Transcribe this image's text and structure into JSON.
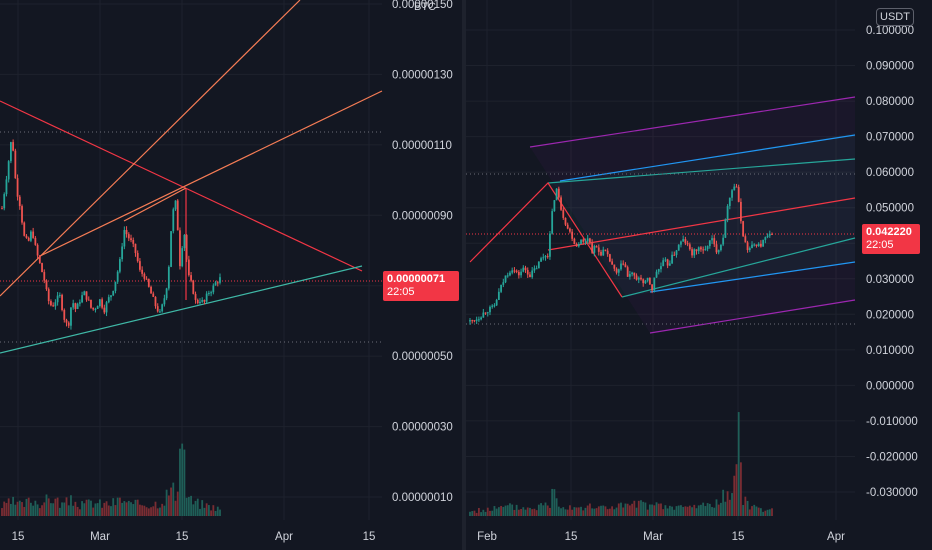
{
  "chart_data": [
    {
      "type": "candlestick",
      "pair_quote": "BTC",
      "y_ticks": [
        "0.00000150",
        "0.00000130",
        "0.00000110",
        "0.00000090",
        "0.00000070",
        "0.00000050",
        "0.00000030",
        "0.00000010"
      ],
      "y_tick_values": [
        1.5e-06,
        1.3e-06,
        1.1e-06,
        9e-07,
        7e-07,
        5e-07,
        3e-07,
        1e-07
      ],
      "x_ticks": [
        "15",
        "Mar",
        "15",
        "Apr",
        "15"
      ],
      "ylim": [
        7e-08,
        1.5e-06
      ],
      "last_price": "0.00000071",
      "countdown": "22:05",
      "price_path": [
        [
          0,
          9.2e-07
        ],
        [
          6,
          1.04e-06
        ],
        [
          10,
          1.13e-06
        ],
        [
          14,
          9.8e-07
        ],
        [
          18,
          9.3e-07
        ],
        [
          22,
          8.4e-07
        ],
        [
          26,
          8.2e-07
        ],
        [
          30,
          8.6e-07
        ],
        [
          34,
          8e-07
        ],
        [
          38,
          7.6e-07
        ],
        [
          42,
          7.2e-07
        ],
        [
          46,
          6.6e-07
        ],
        [
          50,
          6.4e-07
        ],
        [
          54,
          6.6e-07
        ],
        [
          58,
          6.7e-07
        ],
        [
          62,
          6.1e-07
        ],
        [
          66,
          5.8e-07
        ],
        [
          70,
          6.6e-07
        ],
        [
          74,
          6.3e-07
        ],
        [
          78,
          6.6e-07
        ],
        [
          82,
          6.8e-07
        ],
        [
          86,
          6.6e-07
        ],
        [
          90,
          6.3e-07
        ],
        [
          94,
          6.4e-07
        ],
        [
          98,
          6.6e-07
        ],
        [
          102,
          6.3e-07
        ],
        [
          106,
          6.6e-07
        ],
        [
          110,
          6.8e-07
        ],
        [
          114,
          7.2e-07
        ],
        [
          118,
          7.7e-07
        ],
        [
          122,
          8.6e-07
        ],
        [
          126,
          8.4e-07
        ],
        [
          130,
          8.2e-07
        ],
        [
          134,
          7.9e-07
        ],
        [
          138,
          7.4e-07
        ],
        [
          142,
          7.3e-07
        ],
        [
          146,
          7e-07
        ],
        [
          150,
          6.7e-07
        ],
        [
          154,
          6.4e-07
        ],
        [
          158,
          6.2e-07
        ],
        [
          162,
          6.6e-07
        ],
        [
          166,
          7.2e-07
        ],
        [
          170,
          9e-07
        ],
        [
          174,
          9.4e-07
        ],
        [
          178,
          7.6e-07
        ],
        [
          182,
          8.6e-07
        ],
        [
          186,
          7.3e-07
        ],
        [
          190,
          7e-07
        ],
        [
          194,
          6.5e-07
        ],
        [
          198,
          6.6e-07
        ],
        [
          202,
          6.5e-07
        ],
        [
          206,
          6.8e-07
        ],
        [
          210,
          6.9e-07
        ],
        [
          214,
          7.1e-07
        ],
        [
          218,
          7.2e-07
        ]
      ],
      "volume_path": [
        [
          0,
          8
        ],
        [
          10,
          12
        ],
        [
          20,
          9
        ],
        [
          30,
          14
        ],
        [
          40,
          11
        ],
        [
          50,
          16
        ],
        [
          60,
          10
        ],
        [
          70,
          13
        ],
        [
          80,
          9
        ],
        [
          90,
          12
        ],
        [
          100,
          10
        ],
        [
          110,
          11
        ],
        [
          120,
          14
        ],
        [
          130,
          9
        ],
        [
          140,
          11
        ],
        [
          150,
          10
        ],
        [
          160,
          13
        ],
        [
          170,
          24
        ],
        [
          176,
          14
        ],
        [
          180,
          96
        ],
        [
          184,
          20
        ],
        [
          190,
          12
        ],
        [
          200,
          10
        ],
        [
          210,
          8
        ],
        [
          218,
          6
        ]
      ]
    },
    {
      "type": "candlestick",
      "pair_quote": "USDT",
      "y_ticks": [
        "0.100000",
        "0.090000",
        "0.080000",
        "0.070000",
        "0.060000",
        "0.050000",
        "0.040000",
        "0.030000",
        "0.020000",
        "0.010000",
        "0.000000",
        "-0.010000",
        "-0.020000",
        "-0.030000"
      ],
      "y_tick_values": [
        0.1,
        0.09,
        0.08,
        0.07,
        0.06,
        0.05,
        0.04,
        0.03,
        0.02,
        0.01,
        0,
        -0.01,
        -0.02,
        -0.03
      ],
      "x_ticks": [
        "Feb",
        "15",
        "Mar",
        "15",
        "Apr"
      ],
      "ylim": [
        -0.033,
        0.102
      ],
      "last_price": "0.042220",
      "countdown": "22:05",
      "price_path": [
        [
          0,
          0.018
        ],
        [
          8,
          0.019
        ],
        [
          16,
          0.021
        ],
        [
          24,
          0.022
        ],
        [
          30,
          0.027
        ],
        [
          36,
          0.031
        ],
        [
          42,
          0.033
        ],
        [
          48,
          0.031
        ],
        [
          54,
          0.033
        ],
        [
          60,
          0.031
        ],
        [
          66,
          0.033
        ],
        [
          72,
          0.036
        ],
        [
          78,
          0.037
        ],
        [
          82,
          0.048
        ],
        [
          86,
          0.056
        ],
        [
          90,
          0.051
        ],
        [
          94,
          0.047
        ],
        [
          98,
          0.044
        ],
        [
          102,
          0.042
        ],
        [
          106,
          0.039
        ],
        [
          110,
          0.041
        ],
        [
          114,
          0.04
        ],
        [
          118,
          0.042
        ],
        [
          122,
          0.038
        ],
        [
          126,
          0.039
        ],
        [
          130,
          0.037
        ],
        [
          134,
          0.038
        ],
        [
          138,
          0.036
        ],
        [
          142,
          0.034
        ],
        [
          146,
          0.031
        ],
        [
          150,
          0.033
        ],
        [
          154,
          0.035
        ],
        [
          158,
          0.03
        ],
        [
          162,
          0.032
        ],
        [
          166,
          0.029
        ],
        [
          170,
          0.031
        ],
        [
          174,
          0.028
        ],
        [
          178,
          0.03
        ],
        [
          182,
          0.027
        ],
        [
          186,
          0.032
        ],
        [
          190,
          0.033
        ],
        [
          194,
          0.035
        ],
        [
          198,
          0.034
        ],
        [
          202,
          0.036
        ],
        [
          206,
          0.038
        ],
        [
          210,
          0.04
        ],
        [
          214,
          0.041
        ],
        [
          218,
          0.039
        ],
        [
          222,
          0.037
        ],
        [
          226,
          0.038
        ],
        [
          230,
          0.039
        ],
        [
          234,
          0.037
        ],
        [
          238,
          0.04
        ],
        [
          242,
          0.041
        ],
        [
          246,
          0.038
        ],
        [
          250,
          0.039
        ],
        [
          254,
          0.043
        ],
        [
          258,
          0.052
        ],
        [
          262,
          0.055
        ],
        [
          266,
          0.057
        ],
        [
          270,
          0.048
        ],
        [
          274,
          0.041
        ],
        [
          278,
          0.038
        ],
        [
          282,
          0.039
        ],
        [
          286,
          0.04
        ],
        [
          290,
          0.039
        ],
        [
          294,
          0.041
        ],
        [
          298,
          0.042
        ],
        [
          302,
          0.042
        ]
      ],
      "volume_path": [
        [
          0,
          6
        ],
        [
          20,
          9
        ],
        [
          40,
          12
        ],
        [
          60,
          10
        ],
        [
          80,
          16
        ],
        [
          84,
          40
        ],
        [
          90,
          14
        ],
        [
          110,
          12
        ],
        [
          130,
          11
        ],
        [
          150,
          13
        ],
        [
          170,
          15
        ],
        [
          190,
          12
        ],
        [
          210,
          11
        ],
        [
          230,
          13
        ],
        [
          250,
          18
        ],
        [
          256,
          30
        ],
        [
          262,
          22
        ],
        [
          268,
          110
        ],
        [
          272,
          26
        ],
        [
          280,
          14
        ],
        [
          290,
          10
        ],
        [
          302,
          7
        ]
      ]
    }
  ],
  "colors": {
    "background": "#131722",
    "grid": "#1e222d",
    "up": "#26a69a",
    "down": "#ef5350",
    "trend_red": "#f23645",
    "trend_orange": "#f57c55",
    "trend_teal": "#3fb8a6",
    "channel_purple": "#9c27b0",
    "channel_blue": "#2196f3",
    "channel_teal": "#26a69a",
    "dotted": "#5d606b",
    "volume_up": "#1f5f58",
    "volume_down": "#7a2d33"
  }
}
